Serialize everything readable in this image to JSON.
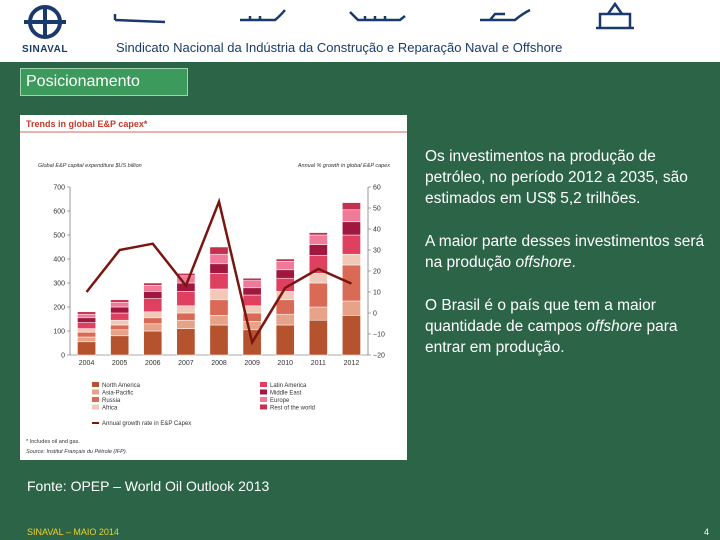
{
  "header": {
    "logo_text": "SINAVAL",
    "title": "Sindicato Nacional da Indústria da Construção e Reparação Naval e Offshore"
  },
  "section": {
    "label": "Posicionamento"
  },
  "chart_data": {
    "type": "bar",
    "title": "Trends in global E&P capex*",
    "ylabel_left": "Global E&P capital expenditure $US billion",
    "ylabel_right": "Annual % growth in global E&P capex",
    "categories": [
      "2004",
      "2005",
      "2006",
      "2007",
      "2008",
      "2009",
      "2010",
      "2011",
      "2012"
    ],
    "ylim": [
      0,
      700
    ],
    "y2lim": [
      -20,
      60
    ],
    "yticks": [
      0,
      100,
      200,
      300,
      400,
      500,
      600,
      700
    ],
    "y2ticks": [
      -20,
      -10,
      0,
      10,
      20,
      30,
      40,
      50,
      60
    ],
    "series": [
      {
        "name": "North America",
        "color": "#b5532e",
        "values": [
          55,
          80,
          100,
          110,
          125,
          105,
          125,
          145,
          165
        ]
      },
      {
        "name": "Asia-Pacific",
        "color": "#e6a38a",
        "values": [
          20,
          25,
          30,
          35,
          40,
          35,
          45,
          55,
          60
        ]
      },
      {
        "name": "Russia",
        "color": "#d96a55",
        "values": [
          20,
          20,
          25,
          30,
          65,
          35,
          60,
          100,
          150
        ]
      },
      {
        "name": "Africa",
        "color": "#f2c9b8",
        "values": [
          15,
          20,
          25,
          30,
          45,
          30,
          35,
          40,
          45
        ]
      },
      {
        "name": "Latin America",
        "color": "#e04060",
        "values": [
          25,
          30,
          55,
          60,
          65,
          45,
          55,
          75,
          80
        ]
      },
      {
        "name": "Middle East",
        "color": "#a01840",
        "values": [
          20,
          25,
          30,
          35,
          40,
          30,
          35,
          45,
          55
        ]
      },
      {
        "name": "Europe",
        "color": "#f07a9a",
        "values": [
          15,
          20,
          25,
          30,
          40,
          30,
          35,
          40,
          50
        ]
      },
      {
        "name": "Rest of the world",
        "color": "#c43050",
        "values": [
          10,
          10,
          10,
          10,
          30,
          10,
          10,
          10,
          30
        ]
      }
    ],
    "line": {
      "name": "Annual growth rate in E&P Capex",
      "color": "#7a1510",
      "values": [
        10,
        30,
        33,
        13,
        53,
        -14,
        12,
        21,
        14
      ]
    },
    "footnote": "* Includes oil and gas.",
    "source": "Source:   Institut Français du Pétrole (IFP)."
  },
  "text": {
    "p1": "Os investimentos  na produção de petróleo, no período 2012 a 2035, são estimados em US$ 5,2 trilhões.",
    "p2_pre": "A maior parte desses investimentos será na produção ",
    "p2_em": "offshore",
    "p2_post": ".",
    "p3_pre": "O Brasil é o país que tem a maior quantidade de campos ",
    "p3_em": "offshore",
    "p3_post": " para entrar em produção."
  },
  "fonte": "Fonte: OPEP – World Oil Outlook 2013",
  "footer": {
    "left": "SINAVAL – MAIO 2014",
    "page": "4"
  }
}
